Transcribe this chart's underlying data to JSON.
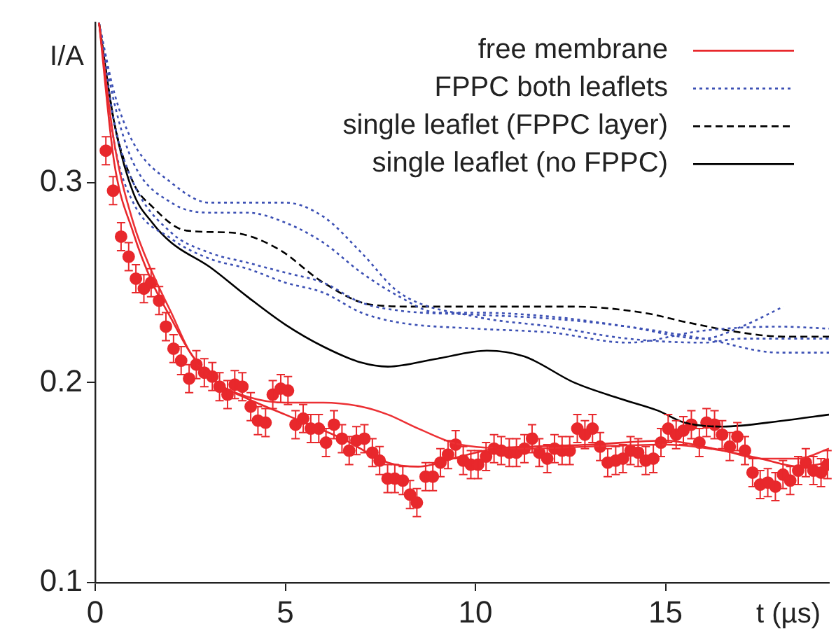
{
  "chart_data": {
    "type": "line",
    "xlabel": "t (µs)",
    "ylabel": "I/A",
    "xlim": [
      0,
      19.3
    ],
    "ylim": [
      0.1,
      0.38
    ],
    "xticks": [
      0,
      5,
      10,
      15
    ],
    "yticks": [
      0.1,
      0.2,
      0.3
    ],
    "grid": false,
    "legend": "top right",
    "series": [
      {
        "name": "free membrane",
        "color": "#e8282c",
        "line_style": "solid",
        "x": [
          0.1,
          0.5,
          1,
          1.5,
          2,
          2.5,
          3.2,
          4,
          5,
          5.5,
          6.5,
          7.7,
          8.5,
          9.6,
          10.5,
          11.4,
          13,
          15,
          16,
          17.5,
          18.5,
          19.3
        ],
        "values": [
          0.38,
          0.31,
          0.275,
          0.25,
          0.232,
          0.215,
          0.2,
          0.192,
          0.184,
          0.18,
          0.172,
          0.16,
          0.158,
          0.163,
          0.167,
          0.168,
          0.169,
          0.171,
          0.168,
          0.162,
          0.158,
          0.16
        ]
      },
      {
        "color": "#ec3034",
        "line_style": "solid",
        "x": [
          0.1,
          0.5,
          1,
          1.5,
          2,
          2.5,
          3.2,
          4,
          5,
          6,
          7,
          7.7,
          8.5,
          9.6,
          11.4,
          13,
          15,
          16.5,
          17.5,
          18.5,
          19.3
        ],
        "values": [
          0.38,
          0.32,
          0.28,
          0.255,
          0.235,
          0.215,
          0.2,
          0.193,
          0.19,
          0.19,
          0.188,
          0.184,
          0.177,
          0.169,
          0.167,
          0.168,
          0.169,
          0.166,
          0.162,
          0.162,
          0.167
        ]
      },
      {
        "name": "FPPC both leaflets",
        "color": "#3c50b4",
        "line_style": "dotted",
        "x": [
          0.1,
          0.5,
          1,
          2,
          3,
          4,
          5,
          6,
          7,
          8,
          9,
          10,
          12,
          14,
          16,
          17,
          18.1
        ],
        "values": [
          0.38,
          0.34,
          0.31,
          0.29,
          0.285,
          0.285,
          0.28,
          0.27,
          0.255,
          0.243,
          0.235,
          0.235,
          0.233,
          0.228,
          0.222,
          0.228,
          0.238
        ]
      },
      {
        "color": "#3c50b4",
        "line_style": "dotted",
        "x": [
          0.1,
          0.5,
          1,
          2,
          3,
          4,
          5,
          6,
          7,
          8,
          10,
          12,
          14,
          16,
          18,
          19.3
        ],
        "values": [
          0.38,
          0.33,
          0.3,
          0.275,
          0.265,
          0.26,
          0.255,
          0.25,
          0.24,
          0.236,
          0.234,
          0.232,
          0.228,
          0.222,
          0.215,
          0.215
        ]
      },
      {
        "color": "#3c50b4",
        "line_style": "dotted",
        "x": [
          0.1,
          0.5,
          1,
          2,
          3,
          4,
          5,
          6,
          7,
          8,
          10,
          12,
          14,
          16,
          18,
          19.3
        ],
        "values": [
          0.38,
          0.32,
          0.29,
          0.272,
          0.262,
          0.257,
          0.25,
          0.245,
          0.235,
          0.23,
          0.227,
          0.225,
          0.22,
          0.226,
          0.228,
          0.227
        ]
      },
      {
        "color": "#3c50b4",
        "line_style": "dotted",
        "x": [
          0.1,
          0.5,
          1,
          2,
          3,
          4,
          5,
          6,
          7,
          8,
          10,
          12,
          14,
          16,
          17,
          19.3
        ],
        "values": [
          0.38,
          0.345,
          0.32,
          0.3,
          0.29,
          0.29,
          0.29,
          0.283,
          0.265,
          0.245,
          0.233,
          0.228,
          0.222,
          0.22,
          0.222,
          0.222
        ]
      },
      {
        "name": "single leaflet (FPPC layer)",
        "color": "#000000",
        "line_style": "dashed",
        "x": [
          0.1,
          0.5,
          1,
          1.5,
          2.4,
          3.6,
          4.8,
          6,
          7.25,
          8.5,
          10.2,
          12.6,
          14.4,
          15.6,
          17,
          18.1,
          19.3
        ],
        "values": [
          0.38,
          0.33,
          0.3,
          0.288,
          0.276,
          0.275,
          0.267,
          0.25,
          0.239,
          0.238,
          0.238,
          0.238,
          0.235,
          0.23,
          0.225,
          0.223,
          0.223
        ]
      },
      {
        "name": "single leaflet (no FPPC)",
        "color": "#000000",
        "line_style": "solid",
        "x": [
          0.1,
          0.5,
          1,
          1.5,
          2,
          3,
          4,
          5,
          6,
          7,
          7.7,
          9,
          10.3,
          11.3,
          12.6,
          13.8,
          14.8,
          15.5,
          16.5,
          18.1,
          19.3
        ],
        "values": [
          0.38,
          0.33,
          0.295,
          0.28,
          0.27,
          0.258,
          0.243,
          0.229,
          0.218,
          0.21,
          0.208,
          0.212,
          0.216,
          0.213,
          0.2,
          0.192,
          0.186,
          0.18,
          0.178,
          0.181,
          0.184
        ]
      },
      {
        "type": "scatter",
        "color": "#e8282c",
        "marker": "circle",
        "errors": [
          0.007,
          0.007,
          0.007,
          0.007,
          0.007,
          0.007,
          0.007,
          0.007,
          0.007,
          0.007,
          0.007,
          0.007,
          0.007,
          0.007,
          0.007,
          0.007,
          0.007,
          0.007,
          0.007,
          0.007,
          0.007,
          0.007,
          0.007,
          0.007,
          0.007,
          0.007,
          0.007,
          0.007,
          0.007,
          0.007,
          0.007,
          0.007,
          0.007,
          0.007,
          0.007,
          0.007,
          0.007,
          0.007,
          0.007,
          0.007,
          0.007,
          0.007,
          0.007,
          0.007,
          0.007,
          0.007,
          0.007,
          0.007,
          0.007,
          0.007,
          0.007,
          0.007,
          0.007,
          0.007,
          0.007,
          0.007,
          0.007,
          0.007,
          0.007,
          0.007,
          0.007,
          0.007,
          0.007,
          0.007,
          0.007,
          0.007,
          0.007,
          0.007,
          0.007,
          0.007,
          0.007,
          0.007,
          0.007,
          0.007,
          0.007,
          0.007,
          0.007,
          0.007,
          0.007,
          0.007,
          0.007,
          0.007,
          0.007,
          0.007,
          0.007,
          0.007,
          0.007,
          0.007,
          0.007,
          0.007,
          0.007,
          0.007,
          0.007,
          0.007,
          0.007,
          0.007
        ],
        "x": [
          0.28,
          0.47,
          0.68,
          0.88,
          1.07,
          1.28,
          1.47,
          1.68,
          1.86,
          2.06,
          2.26,
          2.47,
          2.66,
          2.87,
          3.08,
          3.27,
          3.48,
          3.67,
          3.87,
          4.09,
          4.28,
          4.48,
          4.67,
          4.88,
          5.07,
          5.27,
          5.47,
          5.67,
          5.88,
          6.07,
          6.28,
          6.49,
          6.68,
          6.87,
          7.08,
          7.29,
          7.48,
          7.69,
          7.88,
          8.09,
          8.28,
          8.46,
          8.69,
          8.88,
          9.08,
          9.28,
          9.48,
          9.68,
          9.88,
          10.07,
          10.28,
          10.49,
          10.68,
          10.89,
          11.08,
          11.29,
          11.49,
          11.68,
          11.89,
          12.08,
          12.28,
          12.48,
          12.68,
          12.88,
          13.08,
          13.28,
          13.48,
          13.69,
          13.88,
          14.08,
          14.28,
          14.48,
          14.68,
          14.88,
          15.07,
          15.28,
          15.47,
          15.68,
          15.89,
          16.08,
          16.29,
          16.49,
          16.69,
          16.89,
          17.09,
          17.29,
          17.49,
          17.69,
          17.89,
          18.09,
          18.28,
          18.49,
          18.69,
          18.89,
          19.09,
          19.26
        ],
        "values": [
          0.316,
          0.296,
          0.273,
          0.263,
          0.252,
          0.247,
          0.25,
          0.241,
          0.228,
          0.217,
          0.211,
          0.202,
          0.209,
          0.205,
          0.203,
          0.198,
          0.194,
          0.199,
          0.198,
          0.188,
          0.181,
          0.18,
          0.194,
          0.197,
          0.196,
          0.179,
          0.182,
          0.177,
          0.177,
          0.17,
          0.179,
          0.172,
          0.166,
          0.171,
          0.172,
          0.165,
          0.161,
          0.152,
          0.152,
          0.151,
          0.144,
          0.14,
          0.153,
          0.153,
          0.16,
          0.164,
          0.169,
          0.161,
          0.159,
          0.159,
          0.163,
          0.167,
          0.166,
          0.165,
          0.165,
          0.167,
          0.172,
          0.165,
          0.162,
          0.167,
          0.166,
          0.166,
          0.177,
          0.174,
          0.177,
          0.168,
          0.16,
          0.161,
          0.162,
          0.166,
          0.165,
          0.161,
          0.162,
          0.17,
          0.177,
          0.174,
          0.176,
          0.179,
          0.17,
          0.18,
          0.179,
          0.174,
          0.168,
          0.173,
          0.166,
          0.155,
          0.149,
          0.15,
          0.148,
          0.154,
          0.151,
          0.156,
          0.16,
          0.156,
          0.155,
          0.159
        ]
      }
    ]
  }
}
